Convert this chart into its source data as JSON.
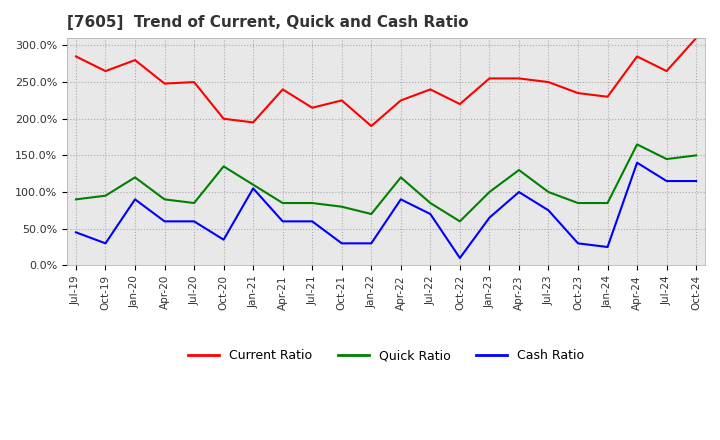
{
  "title": "[7605]  Trend of Current, Quick and Cash Ratio",
  "x_labels": [
    "Jul-19",
    "Oct-19",
    "Jan-20",
    "Apr-20",
    "Jul-20",
    "Oct-20",
    "Jan-21",
    "Apr-21",
    "Jul-21",
    "Oct-21",
    "Jan-22",
    "Apr-22",
    "Jul-22",
    "Oct-22",
    "Jan-23",
    "Apr-23",
    "Jul-23",
    "Oct-23",
    "Jan-24",
    "Apr-24",
    "Jul-24",
    "Oct-24"
  ],
  "current_ratio": [
    285,
    265,
    280,
    248,
    250,
    200,
    195,
    240,
    215,
    225,
    190,
    225,
    240,
    220,
    255,
    255,
    250,
    235,
    230,
    285,
    265,
    310
  ],
  "quick_ratio": [
    90,
    95,
    120,
    90,
    85,
    135,
    110,
    85,
    85,
    80,
    70,
    120,
    85,
    60,
    100,
    130,
    100,
    85,
    85,
    165,
    145,
    150
  ],
  "cash_ratio": [
    45,
    30,
    90,
    60,
    60,
    35,
    105,
    60,
    60,
    30,
    30,
    90,
    70,
    10,
    65,
    100,
    75,
    30,
    25,
    140,
    115,
    115
  ],
  "ylim": [
    0,
    310
  ],
  "yticks": [
    0,
    50,
    100,
    150,
    200,
    250,
    300
  ],
  "colors": {
    "current": "#ff0000",
    "quick": "#008000",
    "cash": "#0000ff"
  },
  "legend_labels": [
    "Current Ratio",
    "Quick Ratio",
    "Cash Ratio"
  ],
  "background_color": "#ffffff",
  "plot_bg_color": "#e8e8e8",
  "grid_color": "#aaaaaa"
}
